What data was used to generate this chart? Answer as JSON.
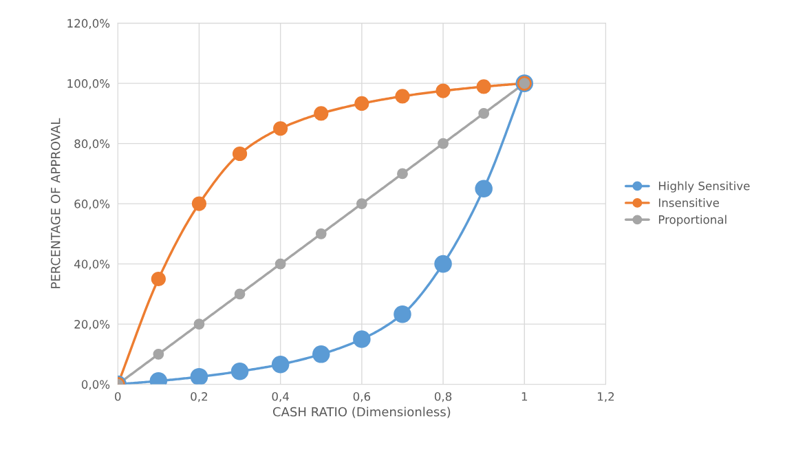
{
  "chart_data": {
    "type": "line",
    "xlabel": "CASH RATIO (Dimensionless)",
    "ylabel": "PERCENTAGE OF APPROVAL",
    "xlim": [
      0,
      1.2
    ],
    "xticks": [
      0,
      {
        "value": 0.2,
        "label": "0,2"
      },
      {
        "value": 0.4,
        "label": "0,4"
      },
      {
        "value": 0.6,
        "label": "0,6"
      },
      {
        "value": 0.8,
        "label": "0,8"
      },
      1,
      {
        "value": 1.2,
        "label": "1,2"
      }
    ],
    "ylim": [
      0,
      120
    ],
    "yticks": [
      {
        "value": 0,
        "label": "0,0%"
      },
      {
        "value": 20,
        "label": "20,0%"
      },
      {
        "value": 40,
        "label": "40,0%"
      },
      {
        "value": 60,
        "label": "60,0%"
      },
      {
        "value": 80,
        "label": "80,0%"
      },
      {
        "value": 100,
        "label": "100,0%"
      },
      {
        "value": 120,
        "label": "120,0%"
      }
    ],
    "x": [
      0,
      0.1,
      0.2,
      0.3,
      0.4,
      0.5,
      0.6,
      0.7,
      0.8,
      0.9,
      1
    ],
    "grid": true,
    "legend": "right",
    "marker": "circle",
    "line_style": "solid",
    "series": [
      {
        "name": "Highly Sensitive",
        "color": "#5b9bd5",
        "values": [
          0,
          1.1,
          2.5,
          4.3,
          6.6,
          10,
          15,
          23.3,
          40,
          65,
          100
        ]
      },
      {
        "name": "Insensitive",
        "color": "#ed7d31",
        "values": [
          0,
          35,
          60,
          76.6,
          85,
          90,
          93.3,
          95.7,
          97.5,
          98.9,
          100
        ]
      },
      {
        "name": "Proportional",
        "color": "#a5a5a5",
        "values": [
          0,
          10,
          20,
          30,
          40,
          50,
          60,
          70,
          80,
          90,
          100
        ]
      }
    ]
  }
}
